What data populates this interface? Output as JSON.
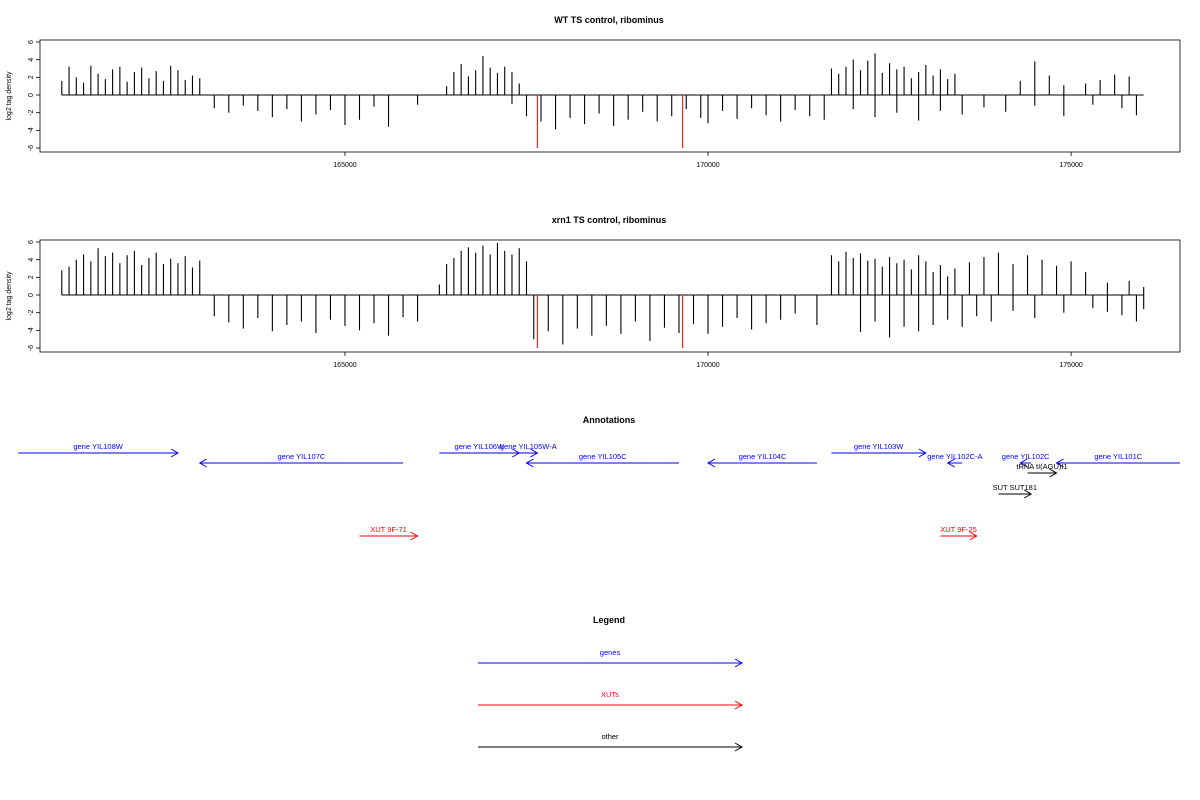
{
  "chart_data": [
    {
      "type": "bar",
      "title": "WT TS control, ribominus",
      "ylabel": "log2 tag density",
      "xlabel": "",
      "xlim": [
        160800,
        176500
      ],
      "ylim": [
        -6,
        6
      ],
      "xticks": [
        165000,
        170000,
        175000
      ],
      "yticks": [
        6,
        4,
        2,
        0,
        -2,
        -4,
        -6
      ],
      "grid": false,
      "series": [
        {
          "strand": "plus",
          "x": [
            161100,
            161200,
            161300,
            161400,
            161500,
            161600,
            161700,
            161800,
            161900,
            162000,
            162100,
            162200,
            162300,
            162400,
            162500,
            162600,
            162700,
            162800,
            162900,
            163000,
            166400,
            166500,
            166600,
            166700,
            166800,
            166900,
            167000,
            167100,
            167200,
            167300,
            167400,
            171700,
            171800,
            171900,
            172000,
            172100,
            172200,
            172300,
            172400,
            172500,
            172600,
            172700,
            172800,
            172900,
            173000,
            173100,
            173200,
            173300,
            173400,
            174300,
            174500,
            174700,
            174900,
            175200,
            175400,
            175600,
            175800
          ],
          "values": [
            1.6,
            3.2,
            2.0,
            1.4,
            3.3,
            2.4,
            1.8,
            2.9,
            3.2,
            1.5,
            2.6,
            3.1,
            1.9,
            2.7,
            1.6,
            3.3,
            2.8,
            1.7,
            2.2,
            1.9,
            1.0,
            2.6,
            3.5,
            2.1,
            2.8,
            4.4,
            3.1,
            2.5,
            3.2,
            2.6,
            1.3,
            3.0,
            2.4,
            3.2,
            4.0,
            2.8,
            3.9,
            4.7,
            2.5,
            3.6,
            2.9,
            3.2,
            1.9,
            2.6,
            3.4,
            2.2,
            2.9,
            1.8,
            2.4,
            1.6,
            3.8,
            2.2,
            1.1,
            1.3,
            1.7,
            2.3,
            2.1
          ],
          "color": "#000000"
        },
        {
          "strand": "minus",
          "x": [
            163200,
            163400,
            163600,
            163800,
            164000,
            164200,
            164400,
            164600,
            164800,
            165000,
            165200,
            165400,
            165600,
            166000,
            167300,
            167500,
            167700,
            167900,
            168100,
            168300,
            168500,
            168700,
            168900,
            169100,
            169300,
            169500,
            169700,
            169900,
            170000,
            170200,
            170400,
            170600,
            170800,
            171000,
            171200,
            171400,
            171600,
            172000,
            172300,
            172600,
            172900,
            173200,
            173500,
            173800,
            174100,
            174500,
            174900,
            175300,
            175700,
            175900
          ],
          "values": [
            -1.5,
            -2.0,
            -1.2,
            -1.8,
            -2.5,
            -1.6,
            -3.0,
            -2.2,
            -1.7,
            -3.4,
            -2.8,
            -1.3,
            -3.6,
            -1.1,
            -1.0,
            -2.4,
            -3.0,
            -3.9,
            -2.6,
            -3.3,
            -2.1,
            -3.5,
            -2.8,
            -1.9,
            -3.0,
            -2.4,
            -1.6,
            -2.6,
            -3.2,
            -1.8,
            -2.7,
            -1.5,
            -2.3,
            -3.0,
            -1.7,
            -2.4,
            -2.8,
            -1.6,
            -2.5,
            -2.0,
            -2.9,
            -1.8,
            -2.2,
            -1.4,
            -1.9,
            -1.2,
            -2.4,
            -1.1,
            -1.5,
            -2.3
          ],
          "color": "#000000"
        },
        {
          "strand": "minus",
          "x": [
            167650,
            169650
          ],
          "values": [
            -6.0,
            -6.0
          ],
          "color": "#ff0000"
        }
      ]
    },
    {
      "type": "bar",
      "title": "xrn1 TS control, ribominus",
      "ylabel": "log2 tag density",
      "xlabel": "",
      "xlim": [
        160800,
        176500
      ],
      "ylim": [
        -6,
        6
      ],
      "xticks": [
        165000,
        170000,
        175000
      ],
      "yticks": [
        6,
        4,
        2,
        0,
        -2,
        -4,
        -6
      ],
      "grid": false,
      "series": [
        {
          "strand": "plus",
          "x": [
            161100,
            161200,
            161300,
            161400,
            161500,
            161600,
            161700,
            161800,
            161900,
            162000,
            162100,
            162200,
            162300,
            162400,
            162500,
            162600,
            162700,
            162800,
            162900,
            163000,
            166300,
            166400,
            166500,
            166600,
            166700,
            166800,
            166900,
            167000,
            167100,
            167200,
            167300,
            167400,
            167500,
            171700,
            171800,
            171900,
            172000,
            172100,
            172200,
            172300,
            172400,
            172500,
            172600,
            172700,
            172800,
            172900,
            173000,
            173100,
            173200,
            173300,
            173400,
            173600,
            173800,
            174000,
            174200,
            174400,
            174600,
            174800,
            175000,
            175200,
            175500,
            175800,
            176000
          ],
          "values": [
            2.8,
            3.2,
            4.0,
            4.6,
            3.8,
            5.3,
            4.4,
            4.8,
            3.6,
            4.5,
            5.0,
            3.4,
            4.2,
            4.8,
            3.5,
            4.1,
            3.6,
            4.4,
            3.1,
            3.9,
            1.2,
            3.5,
            4.2,
            5.0,
            5.4,
            4.8,
            5.6,
            4.6,
            5.9,
            5.0,
            4.6,
            5.3,
            3.8,
            4.5,
            3.8,
            4.9,
            4.2,
            4.7,
            3.9,
            4.1,
            3.2,
            4.3,
            3.6,
            4.0,
            2.9,
            4.5,
            3.8,
            2.6,
            3.4,
            2.1,
            3.0,
            3.7,
            4.3,
            4.8,
            3.5,
            4.5,
            4.0,
            3.3,
            3.8,
            2.6,
            1.4,
            1.6,
            0.9
          ],
          "color": "#000000"
        },
        {
          "strand": "minus",
          "x": [
            163200,
            163400,
            163600,
            163800,
            164000,
            164200,
            164400,
            164600,
            164800,
            165000,
            165200,
            165400,
            165600,
            165800,
            166000,
            167600,
            167800,
            168000,
            168200,
            168400,
            168600,
            168800,
            169000,
            169200,
            169400,
            169600,
            169800,
            170000,
            170200,
            170400,
            170600,
            170800,
            171000,
            171200,
            171500,
            172100,
            172300,
            172500,
            172700,
            172900,
            173100,
            173300,
            173500,
            173700,
            173900,
            174200,
            174500,
            174900,
            175300,
            175500,
            175700,
            175900,
            176000
          ],
          "values": [
            -2.4,
            -3.1,
            -3.8,
            -2.6,
            -4.1,
            -3.4,
            -3.0,
            -4.3,
            -2.8,
            -3.5,
            -4.0,
            -3.2,
            -4.6,
            -2.5,
            -3.0,
            -5.0,
            -4.1,
            -5.6,
            -3.8,
            -4.6,
            -3.5,
            -4.4,
            -3.0,
            -5.2,
            -3.7,
            -4.3,
            -3.3,
            -4.4,
            -3.6,
            -2.6,
            -3.9,
            -3.2,
            -2.8,
            -2.1,
            -3.4,
            -4.2,
            -3.0,
            -4.8,
            -3.6,
            -4.1,
            -3.4,
            -2.8,
            -3.6,
            -2.4,
            -3.0,
            -1.8,
            -2.6,
            -2.0,
            -1.5,
            -1.9,
            -2.3,
            -3.0,
            -1.6
          ],
          "color": "#000000"
        },
        {
          "strand": "minus",
          "x": [
            167650,
            169650
          ],
          "values": [
            -6.0,
            -6.0
          ],
          "color": "#ff0000"
        }
      ]
    }
  ],
  "annotations": {
    "title": "Annotations",
    "features": [
      {
        "label": "gene YIL108W",
        "start": 160500,
        "end": 162700,
        "strand": "+",
        "row": 0,
        "color": "#0000ff"
      },
      {
        "label": "gene YIL107C",
        "start": 163000,
        "end": 165800,
        "strand": "-",
        "row": 1,
        "color": "#0000ff"
      },
      {
        "label": "gene YIL106W",
        "start": 166300,
        "end": 167400,
        "strand": "+",
        "row": 0,
        "color": "#0000ff"
      },
      {
        "label": "gene YIL105W-A",
        "start": 167400,
        "end": 167650,
        "strand": "+",
        "row": 0,
        "color": "#0000ff"
      },
      {
        "label": "gene YIL105C",
        "start": 167500,
        "end": 169600,
        "strand": "-",
        "row": 1,
        "color": "#0000ff"
      },
      {
        "label": "gene YIL104C",
        "start": 170000,
        "end": 171500,
        "strand": "-",
        "row": 1,
        "color": "#0000ff"
      },
      {
        "label": "gene YIL103W",
        "start": 171700,
        "end": 173000,
        "strand": "+",
        "row": 0,
        "color": "#0000ff"
      },
      {
        "label": "gene YIL102C-A",
        "start": 173300,
        "end": 173500,
        "strand": "-",
        "row": 1,
        "color": "#0000ff"
      },
      {
        "label": "gene YIL102C",
        "start": 174300,
        "end": 174450,
        "strand": "-",
        "row": 1,
        "color": "#0000ff"
      },
      {
        "label": "gene YIL101C",
        "start": 174800,
        "end": 176500,
        "strand": "-",
        "row": 1,
        "color": "#0000ff"
      },
      {
        "label": "tRNA tI(AGU)I1",
        "start": 174400,
        "end": 174800,
        "strand": "+",
        "row": 2,
        "color": "#000000"
      },
      {
        "label": "SUT SUT181",
        "start": 174000,
        "end": 174450,
        "strand": "+",
        "row": 3,
        "color": "#000000"
      },
      {
        "label": "XUT 9F-71",
        "start": 165200,
        "end": 166000,
        "strand": "+",
        "row": 4,
        "color": "#ff0000"
      },
      {
        "label": "XUT 9F-25",
        "start": 173200,
        "end": 173700,
        "strand": "+",
        "row": 4,
        "color": "#ff0000"
      }
    ]
  },
  "legend": {
    "title": "Legend",
    "items": [
      {
        "label": "genes",
        "color": "#0000ff"
      },
      {
        "label": "XUTs",
        "color": "#ff0000"
      },
      {
        "label": "other",
        "color": "#000000"
      }
    ]
  }
}
